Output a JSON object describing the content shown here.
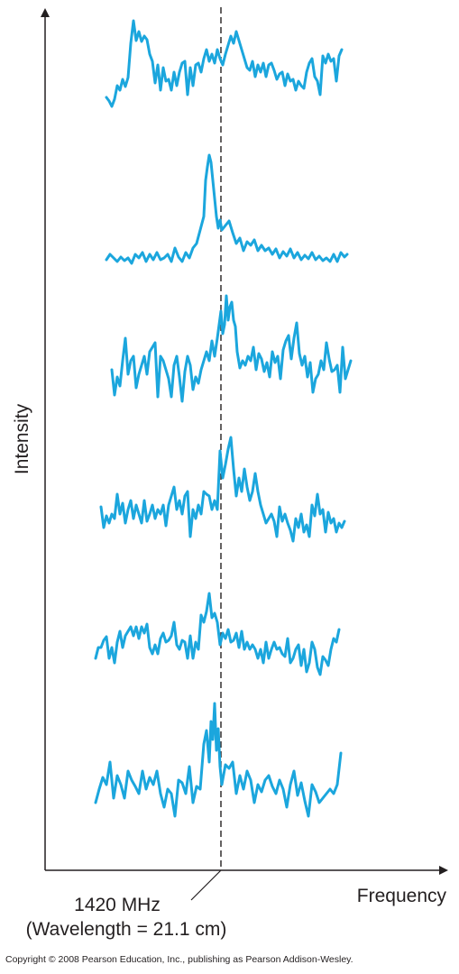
{
  "chart_data": {
    "type": "line",
    "title": "",
    "xlabel": "Frequency",
    "ylabel": "Intensity",
    "reference_line": {
      "label_line1": "1420 MHz",
      "label_line2": "(Wavelength = 21.1 cm)",
      "style": "dashed"
    },
    "copyright": "Copyright © 2008 Pearson Education, Inc., publishing as Pearson Addison-Wesley.",
    "colors": {
      "series": "#1ba6dd",
      "axes": "#231f20"
    },
    "grid": false,
    "legend": "none",
    "series": [
      {
        "x": [
          118,
          121,
          124,
          127,
          130,
          133,
          136,
          139,
          142,
          145,
          148,
          151,
          154,
          157,
          160,
          163,
          166,
          169,
          172,
          175,
          178,
          181,
          184,
          187,
          190,
          193,
          196,
          199,
          202,
          205,
          208,
          211,
          214,
          217,
          220,
          223,
          226,
          229,
          232,
          235,
          238,
          241,
          244,
          247,
          250,
          253,
          256,
          259,
          262,
          265,
          268,
          271,
          274,
          277,
          280,
          283,
          286,
          289,
          292,
          295,
          298,
          301,
          304,
          307,
          310,
          313,
          316,
          319,
          322,
          325,
          328,
          331,
          334,
          337,
          340,
          343,
          346,
          349,
          352,
          355,
          358,
          361,
          364,
          367,
          370,
          373,
          376,
          379
        ],
        "y": [
          108,
          112,
          118,
          110,
          95,
          100,
          88,
          96,
          86,
          48,
          23,
          45,
          35,
          46,
          40,
          44,
          60,
          68,
          92,
          72,
          100,
          75,
          90,
          88,
          100,
          80,
          95,
          80,
          70,
          68,
          105,
          75,
          95,
          72,
          70,
          80,
          65,
          55,
          68,
          60,
          70,
          55,
          65,
          72,
          60,
          50,
          40,
          48,
          35,
          45,
          55,
          65,
          75,
          78,
          68,
          85,
          72,
          80,
          70,
          85,
          72,
          70,
          78,
          88,
          82,
          80,
          95,
          82,
          90,
          88,
          100,
          90,
          95,
          98,
          80,
          70,
          65,
          85,
          90,
          105,
          62,
          70,
          60,
          68,
          65,
          90,
          62,
          55
        ]
      },
      {
        "x": [
          118,
          122,
          126,
          130,
          134,
          138,
          142,
          146,
          150,
          154,
          158,
          162,
          166,
          170,
          174,
          178,
          182,
          186,
          190,
          194,
          198,
          202,
          206,
          210,
          214,
          218,
          222,
          226,
          228,
          230,
          232,
          234,
          236,
          238,
          240,
          242,
          244,
          246,
          250,
          254,
          258,
          262,
          266,
          270,
          274,
          278,
          282,
          286,
          290,
          294,
          298,
          302,
          306,
          310,
          314,
          318,
          322,
          326,
          330,
          334,
          338,
          342,
          346,
          350,
          354,
          358,
          362,
          366,
          370,
          374,
          378,
          382,
          385
        ],
        "y": [
          288,
          282,
          286,
          290,
          285,
          289,
          286,
          292,
          282,
          286,
          280,
          290,
          282,
          288,
          280,
          288,
          286,
          282,
          290,
          275,
          285,
          290,
          280,
          286,
          275,
          270,
          255,
          240,
          200,
          185,
          172,
          180,
          200,
          220,
          240,
          253,
          244,
          255,
          250,
          245,
          258,
          270,
          264,
          278,
          268,
          272,
          266,
          278,
          272,
          278,
          275,
          282,
          276,
          286,
          279,
          284,
          276,
          286,
          280,
          288,
          283,
          287,
          280,
          288,
          284,
          289,
          286,
          290,
          282,
          290,
          280,
          285,
          282
        ]
      },
      {
        "x": [
          124,
          127,
          130,
          133,
          136,
          139,
          142,
          145,
          148,
          151,
          154,
          157,
          160,
          163,
          166,
          169,
          172,
          175,
          178,
          181,
          184,
          187,
          190,
          193,
          196,
          199,
          202,
          205,
          208,
          211,
          214,
          217,
          220,
          223,
          226,
          229,
          232,
          235,
          238,
          241,
          243,
          245,
          247,
          249,
          251,
          253,
          255,
          257,
          259,
          261,
          263,
          266,
          269,
          272,
          275,
          278,
          281,
          284,
          287,
          290,
          293,
          296,
          299,
          302,
          305,
          308,
          311,
          314,
          317,
          320,
          323,
          326,
          329,
          332,
          335,
          338,
          341,
          344,
          347,
          350,
          353,
          356,
          359,
          362,
          365,
          368,
          371,
          374,
          377,
          380,
          383,
          386,
          389
        ],
        "y": [
          410,
          438,
          418,
          428,
          400,
          375,
          415,
          400,
          395,
          430,
          415,
          405,
          395,
          415,
          390,
          385,
          380,
          440,
          395,
          400,
          410,
          420,
          440,
          405,
          395,
          418,
          445,
          412,
          395,
          405,
          432,
          418,
          425,
          410,
          400,
          390,
          400,
          378,
          395,
          375,
          360,
          345,
          370,
          360,
          328,
          355,
          340,
          335,
          355,
          362,
          390,
          408,
          400,
          405,
          395,
          400,
          385,
          410,
          392,
          398,
          412,
          402,
          418,
          390,
          402,
          395,
          420,
          388,
          378,
          372,
          398,
          375,
          358,
          392,
          405,
          395,
          418,
          402,
          435,
          420,
          415,
          400,
          410,
          380,
          398,
          412,
          410,
          405,
          435,
          385,
          420,
          410,
          400
        ]
      },
      {
        "x": [
          112,
          115,
          118,
          121,
          124,
          127,
          130,
          133,
          136,
          139,
          142,
          145,
          148,
          151,
          154,
          157,
          160,
          163,
          166,
          169,
          172,
          175,
          178,
          181,
          184,
          187,
          190,
          193,
          196,
          199,
          202,
          205,
          208,
          211,
          214,
          217,
          220,
          223,
          226,
          229,
          232,
          235,
          238,
          241,
          244,
          247,
          250,
          253,
          256,
          259,
          262,
          265,
          268,
          271,
          274,
          277,
          280,
          283,
          286,
          289,
          292,
          295,
          298,
          301,
          304,
          307,
          310,
          313,
          316,
          319,
          322,
          325,
          328,
          331,
          334,
          337,
          340,
          343,
          346,
          349,
          352,
          355,
          358,
          361,
          364,
          367,
          370,
          373,
          376,
          379,
          382
        ],
        "y": [
          562,
          585,
          572,
          580,
          570,
          575,
          548,
          570,
          558,
          580,
          565,
          555,
          575,
          560,
          570,
          580,
          555,
          578,
          570,
          560,
          575,
          565,
          570,
          560,
          583,
          560,
          550,
          540,
          565,
          555,
          570,
          550,
          545,
          595,
          565,
          575,
          560,
          570,
          545,
          548,
          550,
          565,
          555,
          565,
          500,
          530,
          515,
          498,
          485,
          520,
          550,
          530,
          545,
          520,
          540,
          555,
          545,
          525,
          545,
          560,
          570,
          580,
          575,
          570,
          578,
          595,
          562,
          578,
          570,
          580,
          588,
          600,
          575,
          585,
          570,
          590,
          582,
          595,
          560,
          572,
          548,
          570,
          565,
          590,
          568,
          580,
          575,
          590,
          580,
          585,
          578
        ]
      },
      {
        "x": [
          106,
          109,
          112,
          115,
          118,
          121,
          124,
          127,
          130,
          133,
          136,
          139,
          142,
          145,
          148,
          151,
          154,
          157,
          160,
          163,
          166,
          169,
          172,
          175,
          178,
          181,
          184,
          187,
          190,
          193,
          196,
          199,
          202,
          205,
          208,
          211,
          214,
          217,
          220,
          223,
          226,
          229,
          232,
          235,
          238,
          241,
          244,
          247,
          250,
          253,
          256,
          259,
          262,
          265,
          268,
          271,
          274,
          277,
          280,
          283,
          286,
          289,
          292,
          295,
          298,
          301,
          304,
          307,
          310,
          313,
          316,
          319,
          322,
          325,
          328,
          331,
          334,
          337,
          340,
          343,
          346,
          349,
          352,
          355,
          358,
          361,
          364,
          367,
          370,
          373,
          376
        ],
        "y": [
          730,
          718,
          718,
          710,
          706,
          730,
          718,
          735,
          712,
          700,
          718,
          705,
          700,
          695,
          705,
          695,
          708,
          695,
          702,
          692,
          718,
          725,
          715,
          725,
          708,
          702,
          712,
          710,
          705,
          690,
          715,
          720,
          710,
          712,
          730,
          705,
          730,
          712,
          720,
          682,
          690,
          678,
          658,
          685,
          680,
          690,
          715,
          702,
          708,
          698,
          712,
          710,
          702,
          718,
          700,
          720,
          712,
          720,
          715,
          720,
          730,
          720,
          735,
          712,
          730,
          720,
          712,
          720,
          718,
          725,
          728,
          708,
          735,
          730,
          720,
          715,
          738,
          720,
          745,
          735,
          712,
          720,
          740,
          748,
          728,
          732,
          738,
          720,
          708,
          712,
          698
        ]
      },
      {
        "x": [
          106,
          110,
          114,
          118,
          122,
          126,
          130,
          134,
          138,
          142,
          146,
          150,
          154,
          158,
          162,
          166,
          170,
          174,
          178,
          182,
          186,
          190,
          194,
          198,
          202,
          206,
          210,
          214,
          218,
          222,
          226,
          229,
          232,
          234,
          236,
          238,
          240,
          242,
          244,
          246,
          250,
          254,
          258,
          262,
          266,
          270,
          274,
          278,
          282,
          286,
          290,
          294,
          298,
          302,
          306,
          310,
          314,
          318,
          322,
          326,
          330,
          334,
          338,
          342,
          346,
          350,
          354,
          358,
          362,
          366,
          370,
          374,
          378
        ],
        "y": [
          890,
          875,
          862,
          870,
          845,
          885,
          860,
          870,
          885,
          855,
          865,
          872,
          880,
          855,
          875,
          862,
          870,
          855,
          880,
          895,
          875,
          880,
          905,
          865,
          868,
          880,
          850,
          890,
          872,
          875,
          825,
          810,
          845,
          800,
          820,
          780,
          832,
          808,
          850,
          870,
          848,
          852,
          845,
          880,
          860,
          875,
          855,
          865,
          890,
          870,
          878,
          865,
          860,
          872,
          880,
          865,
          875,
          895,
          870,
          855,
          882,
          868,
          888,
          905,
          870,
          878,
          890,
          885,
          880,
          875,
          880,
          870,
          835
        ]
      }
    ]
  }
}
